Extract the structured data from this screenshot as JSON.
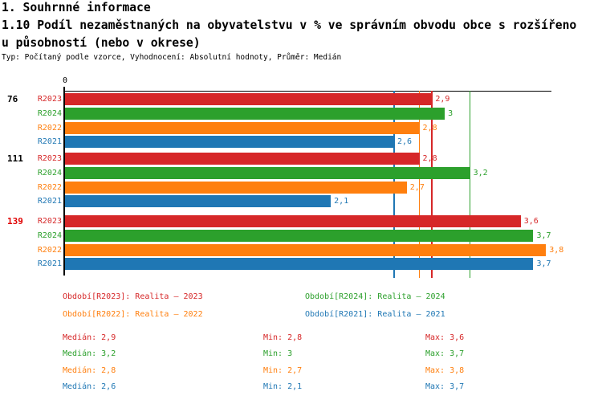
{
  "header": {
    "line1": "1. Souhrnné informace",
    "line2": "1.10 Podíl nezaměstnaných na obyvatelstvu v % ve správním obvodu obce s rozšířeno",
    "line3": "u působností (nebo v okrese)",
    "meta": "Typ: Počítaný podle vzorce, Vyhodnocení: Absolutní hodnoty, Průměr: Medián"
  },
  "chart_data": {
    "type": "bar",
    "orientation": "horizontal",
    "value_axis": {
      "min": 0,
      "max": 3.85,
      "tick_labels": [
        "0"
      ]
    },
    "series": [
      {
        "id": "R2023",
        "color": "#d62728"
      },
      {
        "id": "R2024",
        "color": "#2ca02c"
      },
      {
        "id": "R2022",
        "color": "#ff7f0e"
      },
      {
        "id": "R2021",
        "color": "#1f77b4"
      }
    ],
    "groups": [
      {
        "label": "76",
        "label_color": "#000000",
        "bars": [
          {
            "series": "R2023",
            "value": 2.9,
            "label": "2,9"
          },
          {
            "series": "R2024",
            "value": 3,
            "label": "3"
          },
          {
            "series": "R2022",
            "value": 2.8,
            "label": "2,8"
          },
          {
            "series": "R2021",
            "value": 2.6,
            "label": "2,6"
          }
        ]
      },
      {
        "label": "111",
        "label_color": "#000000",
        "bars": [
          {
            "series": "R2023",
            "value": 2.8,
            "label": "2,8"
          },
          {
            "series": "R2024",
            "value": 3.2,
            "label": "3,2"
          },
          {
            "series": "R2022",
            "value": 2.7,
            "label": "2,7"
          },
          {
            "series": "R2021",
            "value": 2.1,
            "label": "2,1"
          }
        ]
      },
      {
        "label": "139",
        "label_color": "#e00000",
        "bars": [
          {
            "series": "R2023",
            "value": 3.6,
            "label": "3,6"
          },
          {
            "series": "R2024",
            "value": 3.7,
            "label": "3,7"
          },
          {
            "series": "R2022",
            "value": 3.8,
            "label": "3,8"
          },
          {
            "series": "R2021",
            "value": 3.7,
            "label": "3,7"
          }
        ]
      }
    ],
    "median_lines": [
      {
        "series": "R2023",
        "value": 2.9
      },
      {
        "series": "R2024",
        "value": 3.2
      },
      {
        "series": "R2022",
        "value": 2.8
      },
      {
        "series": "R2021",
        "value": 2.6
      }
    ]
  },
  "legend": {
    "columns": [
      [
        {
          "series": "R2023",
          "text": "Období[R2023]: Realita – 2023"
        },
        {
          "series": "R2022",
          "text": "Období[R2022]: Realita – 2022"
        }
      ],
      [
        {
          "series": "R2024",
          "text": "Období[R2024]: Realita – 2024"
        },
        {
          "series": "R2021",
          "text": "Období[R2021]: Realita – 2021"
        }
      ]
    ]
  },
  "stats": {
    "rows": [
      {
        "series": "R2023",
        "median": "Medián: 2,9",
        "min": "Min: 2,8",
        "max": "Max: 3,6"
      },
      {
        "series": "R2024",
        "median": "Medián: 3,2",
        "min": "Min: 3",
        "max": "Max: 3,7"
      },
      {
        "series": "R2022",
        "median": "Medián: 2,8",
        "min": "Min: 2,7",
        "max": "Max: 3,8"
      },
      {
        "series": "R2021",
        "median": "Medián: 2,6",
        "min": "Min: 2,1",
        "max": "Max: 3,7"
      }
    ]
  }
}
